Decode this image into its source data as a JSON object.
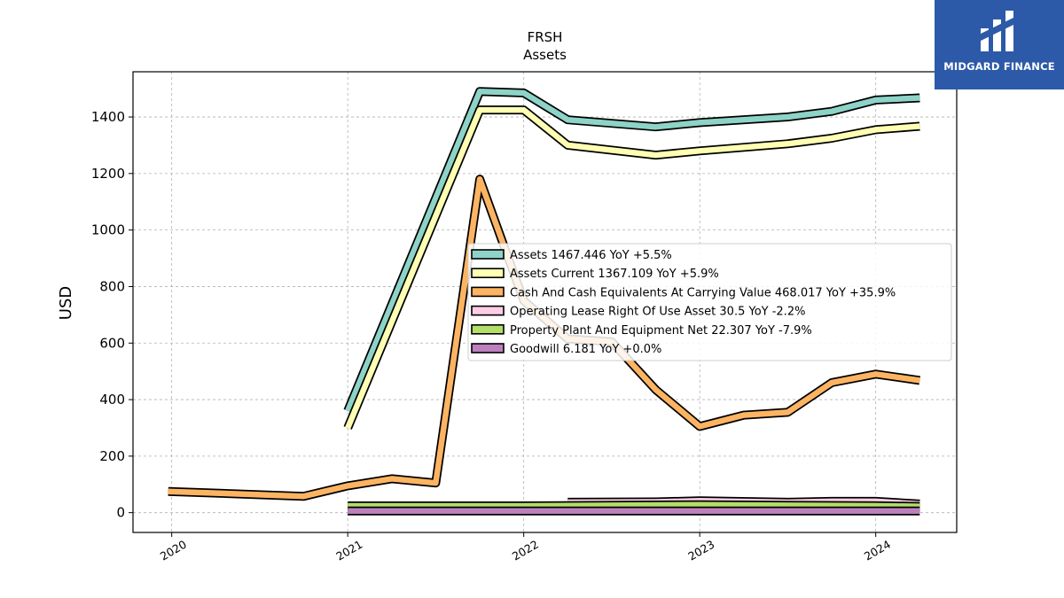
{
  "brand": {
    "name": "MIDGARD FINANCE",
    "bg": "#2d5aa8"
  },
  "chart_data": {
    "type": "line",
    "title": "FRSH",
    "subtitle": "Assets",
    "xlabel": "",
    "ylabel": "USD",
    "xlim": [
      2019.78,
      2024.46
    ],
    "ylim": [
      -70,
      1560
    ],
    "x_ticks": [
      "2020",
      "2021",
      "2022",
      "2023",
      "2024"
    ],
    "y_ticks": [
      0,
      200,
      400,
      600,
      800,
      1000,
      1200,
      1400
    ],
    "grid": true,
    "legend_position": "center-right",
    "series": [
      {
        "name": "Assets  1467.446 YoY +5.5%",
        "color": "#8dd3c7",
        "points": [
          [
            2021.0,
            360
          ],
          [
            2021.75,
            1490
          ],
          [
            2022.0,
            1485
          ],
          [
            2022.25,
            1390
          ],
          [
            2022.75,
            1365
          ],
          [
            2023.0,
            1380
          ],
          [
            2023.5,
            1400
          ],
          [
            2023.75,
            1420
          ],
          [
            2024.0,
            1460
          ],
          [
            2024.25,
            1467.446
          ]
        ]
      },
      {
        "name": "Assets Current  1367.109 YoY +5.9%",
        "color": "#ffffb3",
        "points": [
          [
            2021.0,
            300
          ],
          [
            2021.75,
            1425
          ],
          [
            2022.0,
            1425
          ],
          [
            2022.25,
            1300
          ],
          [
            2022.75,
            1265
          ],
          [
            2023.0,
            1280
          ],
          [
            2023.5,
            1305
          ],
          [
            2023.75,
            1325
          ],
          [
            2024.0,
            1355
          ],
          [
            2024.25,
            1367.109
          ]
        ]
      },
      {
        "name": "Cash And Cash Equivalents At Carrying Value  468.017 YoY +35.9%",
        "color": "#fdb462",
        "points": [
          [
            2019.98,
            75
          ],
          [
            2020.75,
            58
          ],
          [
            2021.0,
            95
          ],
          [
            2021.25,
            120
          ],
          [
            2021.5,
            105
          ],
          [
            2021.75,
            1180
          ],
          [
            2022.0,
            750
          ],
          [
            2022.25,
            615
          ],
          [
            2022.5,
            605
          ],
          [
            2022.75,
            435
          ],
          [
            2023.0,
            305
          ],
          [
            2023.25,
            345
          ],
          [
            2023.5,
            355
          ],
          [
            2023.75,
            460
          ],
          [
            2024.0,
            490
          ],
          [
            2024.25,
            468.017
          ]
        ]
      },
      {
        "name": "Operating Lease Right Of Use Asset  30.5 YoY -2.2%",
        "color": "#fccde5",
        "points": [
          [
            2022.25,
            37
          ],
          [
            2022.75,
            38
          ],
          [
            2023.0,
            42
          ],
          [
            2023.5,
            37
          ],
          [
            2023.75,
            40
          ],
          [
            2024.0,
            40
          ],
          [
            2024.25,
            30.5
          ]
        ]
      },
      {
        "name": "Property Plant And Equipment Net  22.307 YoY -7.9%",
        "color": "#b3de69",
        "points": [
          [
            2021.0,
            24
          ],
          [
            2022.0,
            24
          ],
          [
            2022.5,
            26
          ],
          [
            2023.0,
            28
          ],
          [
            2023.5,
            26
          ],
          [
            2024.0,
            24.2
          ],
          [
            2024.25,
            22.307
          ]
        ]
      },
      {
        "name": "Goodwill  6.181 YoY +0.0%",
        "color": "#bc80bd",
        "points": [
          [
            2021.0,
            6.181
          ],
          [
            2024.25,
            6.181
          ]
        ]
      }
    ]
  }
}
